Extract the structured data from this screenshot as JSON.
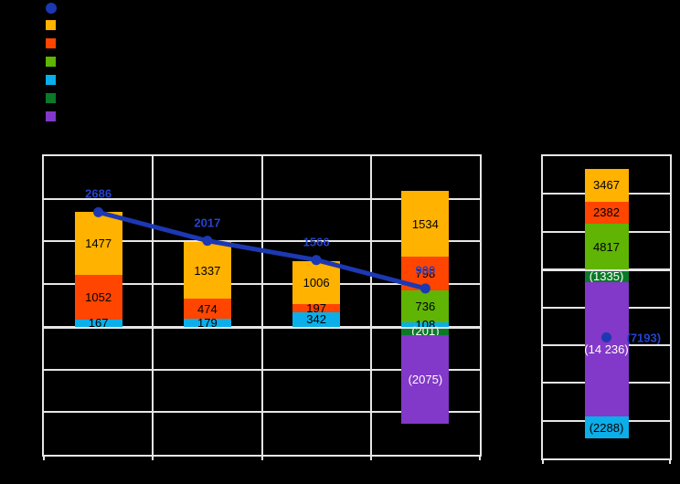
{
  "palette": {
    "blue": "#1C38B2",
    "blueText": "#2443CE",
    "orange": "#FFB200",
    "red": "#FF4500",
    "green": "#5FB404",
    "cyan": "#0BAEE8",
    "darkgreen": "#0B7A28",
    "purple": "#8238C8",
    "grid": "#E6E6E6",
    "background": "#000000"
  },
  "legend": {
    "items": [
      {
        "shape": "circle",
        "color": "blue"
      },
      {
        "shape": "square",
        "color": "orange"
      },
      {
        "shape": "square",
        "color": "red"
      },
      {
        "shape": "square",
        "color": "green"
      },
      {
        "shape": "square",
        "color": "cyan"
      },
      {
        "shape": "square",
        "color": "darkgreen"
      },
      {
        "shape": "square",
        "color": "purple"
      }
    ]
  },
  "chart_data": [
    {
      "type": "stacked-bar+line",
      "title": "",
      "categories": [
        "",
        "",
        "",
        ""
      ],
      "ylim": [
        -3000,
        4000
      ],
      "grid_interval": 1000,
      "grid": true,
      "legend_position": "top-left",
      "bars": [
        {
          "pos": [
            {
              "c": "orange",
              "v": 1477,
              "label": "1477",
              "lc": "#000000"
            },
            {
              "c": "red",
              "v": 1052,
              "label": "1052",
              "lc": "#000000"
            },
            {
              "c": "cyan",
              "v": 167,
              "label": "167",
              "lc": "#000000"
            }
          ],
          "neg": []
        },
        {
          "pos": [
            {
              "c": "orange",
              "v": 1337,
              "label": "1337",
              "lc": "#000000"
            },
            {
              "c": "red",
              "v": 474,
              "label": "474",
              "lc": "#000000"
            },
            {
              "c": "cyan",
              "v": 179,
              "label": "179",
              "lc": "#000000"
            }
          ],
          "neg": []
        },
        {
          "pos": [
            {
              "c": "orange",
              "v": 1006,
              "label": "1006",
              "lc": "#000000"
            },
            {
              "c": "red",
              "v": 197,
              "label": "197",
              "lc": "#000000"
            },
            {
              "c": "cyan",
              "v": 342,
              "label": "342",
              "lc": "#000000"
            }
          ],
          "neg": []
        },
        {
          "pos": [
            {
              "c": "orange",
              "v": 1534,
              "label": "1534",
              "lc": "#000000"
            },
            {
              "c": "red",
              "v": 798,
              "label": "798",
              "lc": "#000000"
            },
            {
              "c": "green",
              "v": 736,
              "label": "736",
              "lc": "#000000"
            },
            {
              "c": "cyan",
              "v": 108,
              "label": "108",
              "lc": "#000000"
            }
          ],
          "neg": [
            {
              "c": "darkgreen",
              "v": -201,
              "label": "(201)",
              "lc": "#FFFFFF"
            },
            {
              "c": "purple",
              "v": -2075,
              "label": "(2075)",
              "lc": "#FFFFFF"
            }
          ]
        }
      ],
      "line": {
        "color": "blue",
        "points": [
          {
            "v": 2686,
            "label": "2686"
          },
          {
            "v": 2017,
            "label": "2017"
          },
          {
            "v": 1566,
            "label": "1566"
          },
          {
            "v": 900,
            "label": "900"
          }
        ]
      }
    },
    {
      "type": "stacked-bar",
      "title": "",
      "categories": [
        ""
      ],
      "ylim": [
        -20000,
        12000
      ],
      "grid_interval": 4000,
      "grid": true,
      "bars": [
        {
          "pos": [
            {
              "c": "orange",
              "v": 3467,
              "label": "3467",
              "lc": "#000000"
            },
            {
              "c": "red",
              "v": 2382,
              "label": "2382",
              "lc": "#000000"
            },
            {
              "c": "green",
              "v": 4817,
              "label": "4817",
              "lc": "#000000"
            }
          ],
          "neg": [
            {
              "c": "darkgreen",
              "v": -1335,
              "label": "(1335)",
              "lc": "#FFFFFF"
            },
            {
              "c": "purple",
              "v": -14236,
              "label": "(14 236)",
              "lc": "#FFFFFF"
            },
            {
              "c": "cyan",
              "v": -2288,
              "label": "(2288)",
              "lc": "#000000"
            }
          ]
        }
      ],
      "point": {
        "v": -7193,
        "label": "(7193)",
        "color": "blue"
      }
    }
  ]
}
